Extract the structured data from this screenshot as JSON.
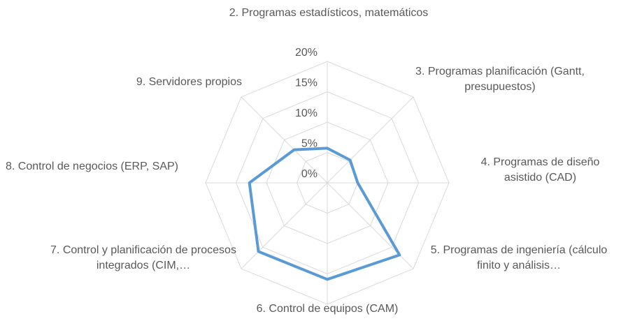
{
  "chart_data": {
    "type": "radar",
    "categories": [
      "2. Programas estadísticos, matemáticos",
      "3. Programas planificación (Gantt, presupuestos)",
      "4. Programas de diseño asistido (CAD)",
      "5. Programas de ingeniería (cálculo finito y análisis…",
      "6. Control de equipos (CAM)",
      "7. Control y planificación de procesos integrados (CIM,…",
      "8. Control de negocios (ERP, SAP)",
      "9. Servidores propios"
    ],
    "series": [
      {
        "color": "#5b9bd5",
        "values": [
          5.7,
          5.3,
          5.0,
          16.8,
          15.9,
          16.0,
          12.8,
          7.7
        ]
      }
    ],
    "ylim": [
      0,
      20
    ],
    "yticks": [
      {
        "value": 0,
        "label": "0%"
      },
      {
        "value": 5,
        "label": "5%"
      },
      {
        "value": 10,
        "label": "10%"
      },
      {
        "value": 15,
        "label": "15%"
      },
      {
        "value": 20,
        "label": "20%"
      }
    ],
    "grid": true
  }
}
